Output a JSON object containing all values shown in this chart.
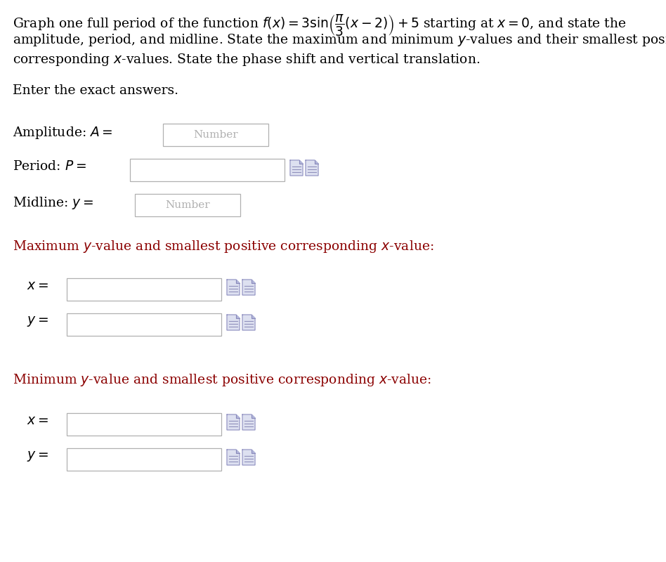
{
  "bg_color": "#ffffff",
  "text_color": "#000000",
  "dark_red": "#8B0000",
  "font_size_body": 13.5,
  "font_size_label": 13.5,
  "font_size_small": 11,
  "line1": "Graph one full period of the function $f(x) = 3\\sin\\!\\left(\\dfrac{\\pi}{3}(x-2)\\right) + 5$ starting at $x = 0$, and state the",
  "line2": "amplitude, period, and midline. State the maximum and minimum $y$-values and their smallest positive",
  "line3": "corresponding $x$-values. State the phase shift and vertical translation.",
  "enter_exact": "Enter the exact answers.",
  "amp_label": "Amplitude: $A = $",
  "period_label": "Period: $P = $",
  "midline_label": "Midline: $y = $",
  "max_title": "Maximum $y$-value and smallest positive corresponding $x$-value:",
  "min_title": "Minimum $y$-value and smallest positive corresponding $x$-value:",
  "x_label": "$x = $",
  "y_label": "$y = $",
  "number_placeholder": "Number"
}
